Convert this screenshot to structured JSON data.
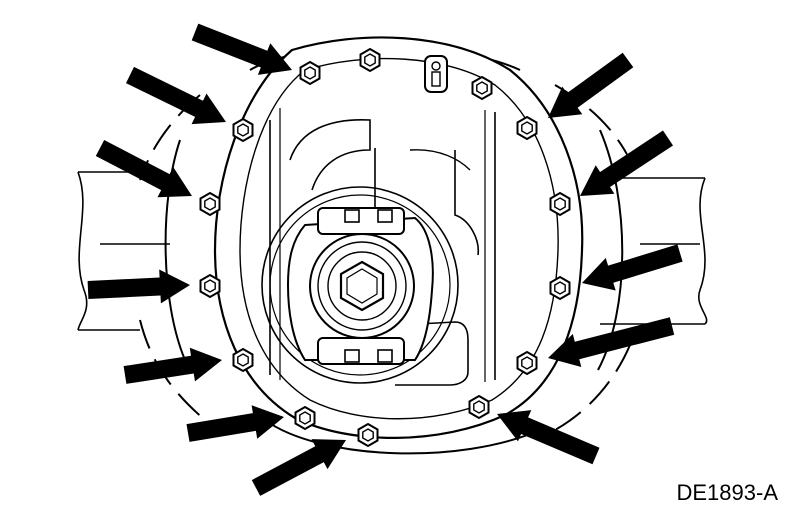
{
  "figure": {
    "caption": "DE1893-A",
    "line_color": "#000000",
    "fill_color": "#ffffff",
    "arrow_color": "#000000"
  }
}
